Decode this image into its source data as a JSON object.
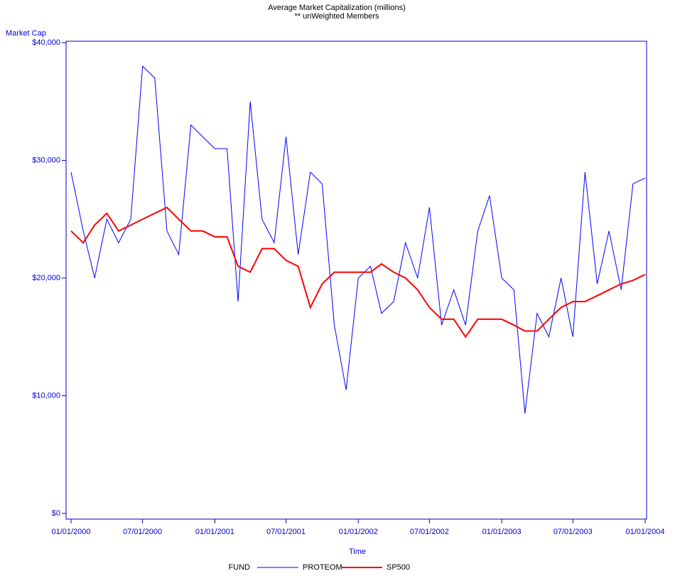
{
  "chart_data": {
    "type": "line",
    "title": "Average Market Capitalization (millions)",
    "subtitle": "** unWeighted Members",
    "y_label": "Market Cap",
    "x_label": "Time",
    "legend_title": "FUND",
    "x": [
      "2000-01-01",
      "2000-02-01",
      "2000-03-01",
      "2000-04-01",
      "2000-05-01",
      "2000-06-01",
      "2000-07-01",
      "2000-08-01",
      "2000-09-01",
      "2000-10-01",
      "2000-11-01",
      "2000-12-01",
      "2001-01-01",
      "2001-02-01",
      "2001-03-01",
      "2001-04-01",
      "2001-05-01",
      "2001-06-01",
      "2001-07-01",
      "2001-08-01",
      "2001-09-01",
      "2001-10-01",
      "2001-11-01",
      "2001-12-01",
      "2002-01-01",
      "2002-02-01",
      "2002-03-01",
      "2002-04-01",
      "2002-05-01",
      "2002-06-01",
      "2002-07-01",
      "2002-08-01",
      "2002-09-01",
      "2002-10-01",
      "2002-11-01",
      "2002-12-01",
      "2003-01-01",
      "2003-02-01",
      "2003-03-01",
      "2003-04-01",
      "2003-05-01",
      "2003-06-01",
      "2003-07-01",
      "2003-08-01",
      "2003-09-01",
      "2003-10-01",
      "2003-11-01",
      "2003-12-01",
      "2004-01-01"
    ],
    "series": [
      {
        "name": "PROTEOM",
        "color": "#0000ff",
        "values": [
          29000,
          24000,
          20000,
          25000,
          23000,
          25000,
          38000,
          37000,
          24000,
          22000,
          33000,
          32000,
          31000,
          31000,
          18000,
          35000,
          25000,
          23000,
          32000,
          22000,
          29000,
          28000,
          16000,
          10500,
          20000,
          21000,
          17000,
          18000,
          23000,
          20000,
          26000,
          16000,
          19000,
          16000,
          24000,
          27000,
          20000,
          19000,
          8500,
          17000,
          15000,
          20000,
          15000,
          29000,
          19500,
          24000,
          19000,
          28000,
          28500
        ]
      },
      {
        "name": "SP500",
        "color": "#ff0000",
        "values": [
          24000,
          23000,
          24500,
          25500,
          24000,
          24500,
          25000,
          25500,
          26000,
          25000,
          24000,
          24000,
          23500,
          23500,
          21000,
          20500,
          22500,
          22500,
          21500,
          21000,
          17500,
          19500,
          20500,
          20500,
          20500,
          20500,
          21200,
          20500,
          20000,
          19000,
          17500,
          16500,
          16500,
          15000,
          16500,
          16500,
          16500,
          16000,
          15500,
          15500,
          16500,
          17500,
          18000,
          18000,
          18500,
          19000,
          19500,
          19800,
          20300
        ]
      }
    ],
    "xlim": [
      "2000-01-01",
      "2004-01-01"
    ],
    "xticks": [
      {
        "value": "2000-01-01",
        "label": "01/01/2000"
      },
      {
        "value": "2000-07-01",
        "label": "07/01/2000"
      },
      {
        "value": "2001-01-01",
        "label": "01/01/2001"
      },
      {
        "value": "2001-07-01",
        "label": "07/01/2001"
      },
      {
        "value": "2002-01-01",
        "label": "01/01/2002"
      },
      {
        "value": "2002-07-01",
        "label": "07/01/2002"
      },
      {
        "value": "2003-01-01",
        "label": "01/01/2003"
      },
      {
        "value": "2003-07-01",
        "label": "07/01/2003"
      },
      {
        "value": "2004-01-01",
        "label": "01/01/2004"
      }
    ],
    "ylim": [
      0,
      40000
    ],
    "yticks": [
      {
        "value": 0,
        "label": "$0"
      },
      {
        "value": 10000,
        "label": "$10,000"
      },
      {
        "value": 20000,
        "label": "$20,000"
      },
      {
        "value": 30000,
        "label": "$30,000"
      },
      {
        "value": 40000,
        "label": "$40,000"
      }
    ]
  }
}
